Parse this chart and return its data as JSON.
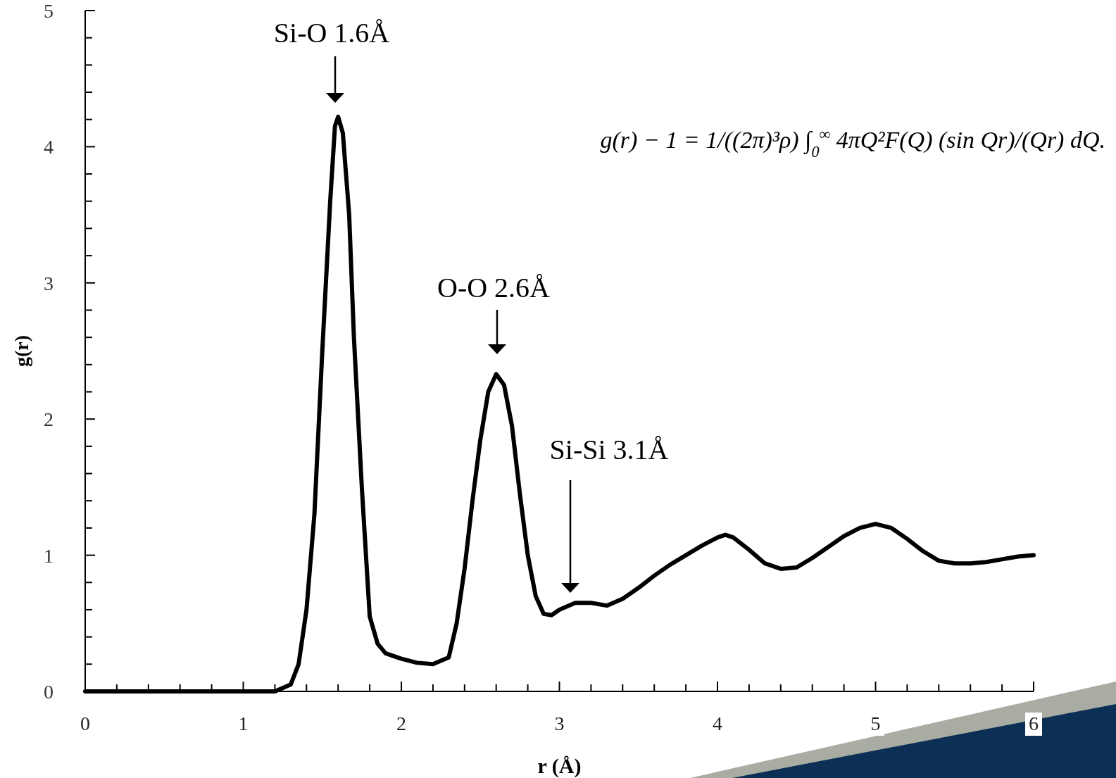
{
  "chart_data": {
    "type": "line",
    "xlabel": "r (Å)",
    "ylabel": "g(r)",
    "xlim": [
      0,
      6
    ],
    "ylim": [
      0,
      5
    ],
    "xticks": [
      0,
      {
        "value": 0.2,
        "label": null
      },
      {
        "value": 0.4,
        "label": null
      },
      {
        "value": 0.6,
        "label": null
      },
      {
        "value": 0.8,
        "label": null
      },
      1,
      {
        "value": 1.2,
        "label": null
      },
      {
        "value": 1.4,
        "label": null
      },
      {
        "value": 1.6,
        "label": null
      },
      {
        "value": 1.8,
        "label": null
      },
      2,
      {
        "value": 2.2,
        "label": null
      },
      {
        "value": 2.4,
        "label": null
      },
      {
        "value": 2.6,
        "label": null
      },
      {
        "value": 2.8,
        "label": null
      },
      3,
      {
        "value": 3.2,
        "label": null
      },
      {
        "value": 3.4,
        "label": null
      },
      {
        "value": 3.6,
        "label": null
      },
      {
        "value": 3.8,
        "label": null
      },
      4,
      {
        "value": 4.2,
        "label": null
      },
      {
        "value": 4.4,
        "label": null
      },
      {
        "value": 4.6,
        "label": null
      },
      {
        "value": 4.8,
        "label": null
      },
      5,
      {
        "value": 5.2,
        "label": null
      },
      {
        "value": 5.4,
        "label": null
      },
      {
        "value": 5.6,
        "label": null
      },
      {
        "value": 5.8,
        "label": null
      },
      6
    ],
    "yticks": [
      0,
      {
        "value": 0.2,
        "label": null
      },
      {
        "value": 0.4,
        "label": null
      },
      {
        "value": 0.6,
        "label": null
      },
      {
        "value": 0.8,
        "label": null
      },
      1,
      {
        "value": 1.2,
        "label": null
      },
      {
        "value": 1.4,
        "label": null
      },
      {
        "value": 1.6,
        "label": null
      },
      {
        "value": 1.8,
        "label": null
      },
      2,
      {
        "value": 2.2,
        "label": null
      },
      {
        "value": 2.4,
        "label": null
      },
      {
        "value": 2.6,
        "label": null
      },
      {
        "value": 2.8,
        "label": null
      },
      3,
      {
        "value": 3.2,
        "label": null
      },
      {
        "value": 3.4,
        "label": null
      },
      {
        "value": 3.6,
        "label": null
      },
      {
        "value": 3.8,
        "label": null
      },
      4,
      {
        "value": 4.2,
        "label": null
      },
      {
        "value": 4.4,
        "label": null
      },
      {
        "value": 4.6,
        "label": null
      },
      {
        "value": 4.8,
        "label": null
      },
      5
    ],
    "grid": false,
    "marker": "none",
    "line_style": "solid",
    "series": [
      {
        "color": "#000000",
        "x": [
          0,
          0.5,
          1.0,
          1.2,
          1.3,
          1.35,
          1.4,
          1.45,
          1.5,
          1.55,
          1.58,
          1.6,
          1.63,
          1.67,
          1.7,
          1.75,
          1.8,
          1.85,
          1.9,
          2.0,
          2.1,
          2.2,
          2.3,
          2.35,
          2.4,
          2.45,
          2.5,
          2.55,
          2.6,
          2.65,
          2.7,
          2.75,
          2.8,
          2.85,
          2.9,
          2.95,
          3.0,
          3.1,
          3.2,
          3.3,
          3.4,
          3.5,
          3.6,
          3.7,
          3.8,
          3.9,
          4.0,
          4.05,
          4.1,
          4.2,
          4.3,
          4.4,
          4.5,
          4.6,
          4.7,
          4.8,
          4.9,
          5.0,
          5.1,
          5.2,
          5.3,
          5.4,
          5.5,
          5.6,
          5.7,
          5.8,
          5.9,
          6.0
        ],
        "values": [
          0,
          0,
          0,
          0,
          0.05,
          0.2,
          0.6,
          1.3,
          2.5,
          3.6,
          4.15,
          4.22,
          4.1,
          3.5,
          2.6,
          1.5,
          0.55,
          0.35,
          0.28,
          0.24,
          0.21,
          0.2,
          0.25,
          0.5,
          0.9,
          1.4,
          1.85,
          2.2,
          2.33,
          2.25,
          1.95,
          1.45,
          1.0,
          0.7,
          0.57,
          0.56,
          0.6,
          0.65,
          0.65,
          0.63,
          0.68,
          0.76,
          0.85,
          0.93,
          1.0,
          1.07,
          1.13,
          1.15,
          1.13,
          1.04,
          0.94,
          0.9,
          0.91,
          0.98,
          1.06,
          1.14,
          1.2,
          1.23,
          1.2,
          1.12,
          1.03,
          0.96,
          0.94,
          0.94,
          0.95,
          0.97,
          0.99,
          1.0
        ]
      }
    ],
    "annotations": [
      "Si-O 1.6Å",
      "O-O 2.6Å",
      "Si-Si 3.1Å",
      "g(r) − 1 = 1/((2π)³ρ) ∫$_{0}$$^{∞}$ 4πQ²F(Q) (sin Qr)/(Qr) dQ."
    ]
  }
}
